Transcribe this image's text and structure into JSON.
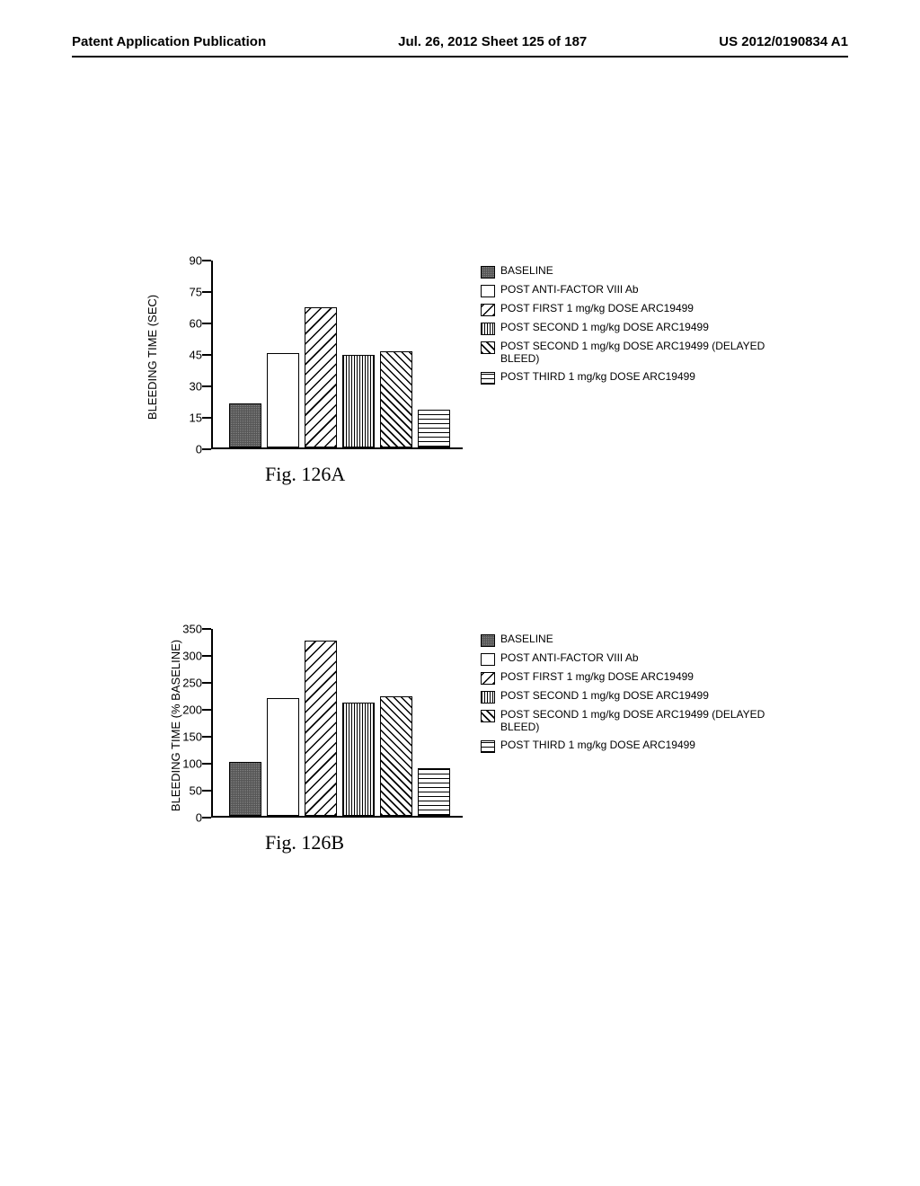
{
  "header": {
    "left": "Patent Application Publication",
    "center": "Jul. 26, 2012  Sheet 125 of 187",
    "right": "US 2012/0190834 A1"
  },
  "legend": [
    {
      "pattern": "pattern-dense",
      "label": "BASELINE"
    },
    {
      "pattern": "pattern-white",
      "label": "POST ANTI-FACTOR VIII Ab"
    },
    {
      "pattern": "pattern-diag-bl-tr",
      "label": "POST FIRST 1 mg/kg DOSE ARC19499"
    },
    {
      "pattern": "pattern-vert",
      "label": "POST SECOND 1 mg/kg DOSE ARC19499"
    },
    {
      "pattern": "pattern-diag-tl-br",
      "label": "POST SECOND 1 mg/kg DOSE ARC19499 (DELAYED BLEED)"
    },
    {
      "pattern": "pattern-horiz",
      "label": "POST THIRD 1 mg/kg DOSE ARC19499"
    }
  ],
  "chart_a": {
    "caption": "Fig. 126A",
    "ylabel": "BLEEDING TIME (SEC)",
    "ymax": 90,
    "ytick_step": 15,
    "yticks": [
      0,
      15,
      30,
      45,
      60,
      75,
      90
    ],
    "bars": [
      {
        "value": 21,
        "pattern": "pattern-dense"
      },
      {
        "value": 45,
        "pattern": "pattern-white"
      },
      {
        "value": 67,
        "pattern": "pattern-diag-bl-tr"
      },
      {
        "value": 44,
        "pattern": "pattern-vert"
      },
      {
        "value": 46,
        "pattern": "pattern-diag-tl-br"
      },
      {
        "value": 18,
        "pattern": "pattern-horiz"
      }
    ]
  },
  "chart_b": {
    "caption": "Fig. 126B",
    "ylabel": "BLEEDING TIME (% BASELINE)",
    "ymax": 350,
    "ytick_step": 50,
    "yticks": [
      0,
      50,
      100,
      150,
      200,
      250,
      300,
      350
    ],
    "bars": [
      {
        "value": 100,
        "pattern": "pattern-dense"
      },
      {
        "value": 218,
        "pattern": "pattern-white"
      },
      {
        "value": 325,
        "pattern": "pattern-diag-bl-tr"
      },
      {
        "value": 210,
        "pattern": "pattern-vert"
      },
      {
        "value": 222,
        "pattern": "pattern-diag-tl-br"
      },
      {
        "value": 88,
        "pattern": "pattern-horiz"
      }
    ]
  }
}
